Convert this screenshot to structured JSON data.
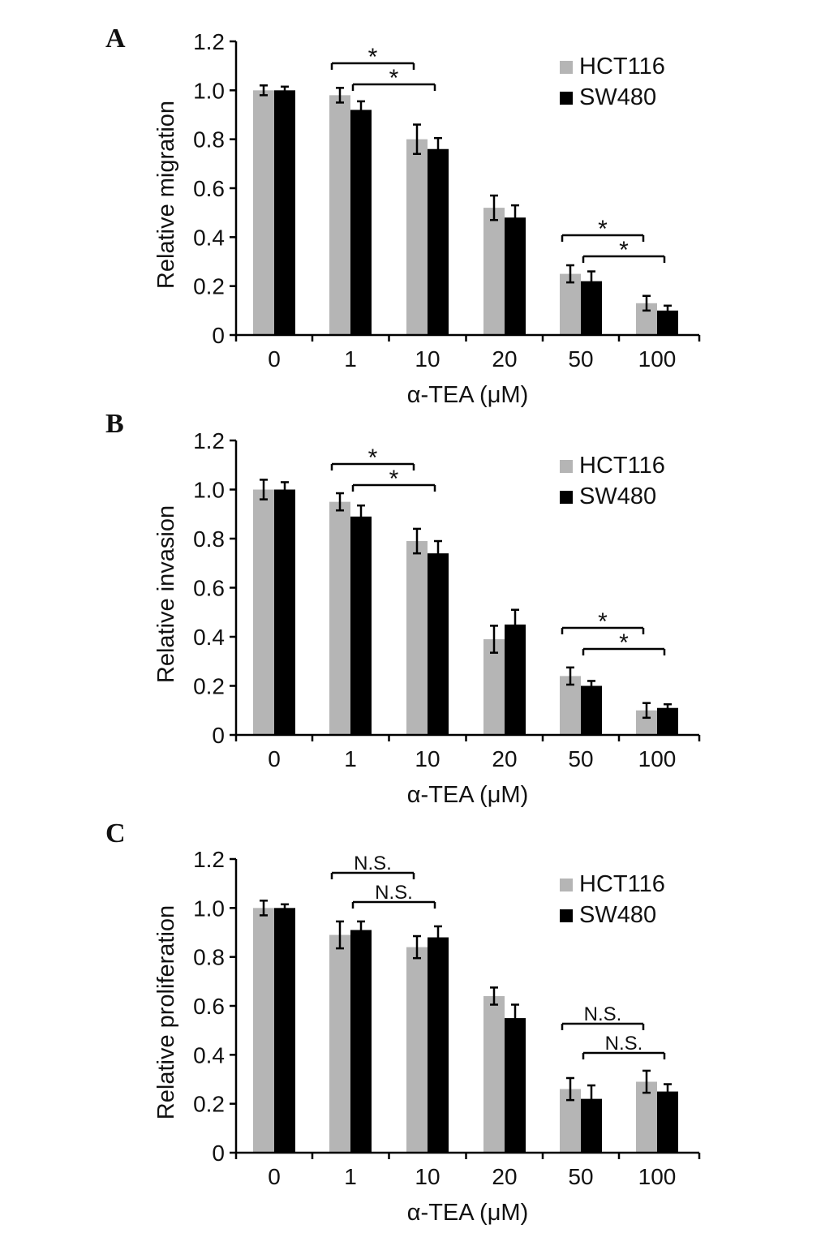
{
  "figure": {
    "panels": [
      "A",
      "B",
      "C"
    ]
  },
  "colors": {
    "HCT116": "#b5b5b5",
    "SW480": "#000000"
  },
  "chart_data": [
    {
      "type": "bar",
      "panel": "A",
      "categories": [
        "0",
        "1",
        "10",
        "20",
        "50",
        "100"
      ],
      "series": [
        {
          "name": "HCT116",
          "values": [
            1.0,
            0.98,
            0.8,
            0.52,
            0.25,
            0.13
          ],
          "errors": [
            0.02,
            0.03,
            0.06,
            0.05,
            0.035,
            0.03
          ]
        },
        {
          "name": "SW480",
          "values": [
            1.0,
            0.92,
            0.76,
            0.48,
            0.22,
            0.1
          ],
          "errors": [
            0.015,
            0.035,
            0.045,
            0.05,
            0.04,
            0.02
          ]
        }
      ],
      "title": "",
      "xlabel": "α-TEA (μM)",
      "ylabel": "Relative migration",
      "ylim": [
        0,
        1.2
      ],
      "yticks": [
        "0",
        "0.2",
        "0.4",
        "0.6",
        "0.8",
        "1.0",
        "1.2"
      ],
      "legend": "top-right",
      "grid": false,
      "annotations": [
        {
          "label": "*",
          "from": {
            "category": "1",
            "series": "HCT116"
          },
          "to": {
            "category": "10",
            "series": "HCT116"
          }
        },
        {
          "label": "*",
          "from": {
            "category": "1",
            "series": "SW480"
          },
          "to": {
            "category": "10",
            "series": "SW480"
          }
        },
        {
          "label": "*",
          "from": {
            "category": "50",
            "series": "HCT116"
          },
          "to": {
            "category": "100",
            "series": "HCT116"
          }
        },
        {
          "label": "*",
          "from": {
            "category": "50",
            "series": "SW480"
          },
          "to": {
            "category": "100",
            "series": "SW480"
          }
        }
      ]
    },
    {
      "type": "bar",
      "panel": "B",
      "categories": [
        "0",
        "1",
        "10",
        "20",
        "50",
        "100"
      ],
      "series": [
        {
          "name": "HCT116",
          "values": [
            1.0,
            0.95,
            0.79,
            0.39,
            0.24,
            0.1
          ],
          "errors": [
            0.04,
            0.035,
            0.05,
            0.055,
            0.035,
            0.03
          ]
        },
        {
          "name": "SW480",
          "values": [
            1.0,
            0.89,
            0.74,
            0.45,
            0.2,
            0.11
          ],
          "errors": [
            0.03,
            0.045,
            0.05,
            0.06,
            0.02,
            0.015
          ]
        }
      ],
      "title": "",
      "xlabel": "α-TEA (μM)",
      "ylabel": "Relative invasion",
      "ylim": [
        0,
        1.2
      ],
      "yticks": [
        "0",
        "0.2",
        "0.4",
        "0.6",
        "0.8",
        "1.0",
        "1.2"
      ],
      "legend": "top-right",
      "grid": false,
      "annotations": [
        {
          "label": "*",
          "from": {
            "category": "1",
            "series": "HCT116"
          },
          "to": {
            "category": "10",
            "series": "HCT116"
          }
        },
        {
          "label": "*",
          "from": {
            "category": "1",
            "series": "SW480"
          },
          "to": {
            "category": "10",
            "series": "SW480"
          }
        },
        {
          "label": "*",
          "from": {
            "category": "50",
            "series": "HCT116"
          },
          "to": {
            "category": "100",
            "series": "HCT116"
          }
        },
        {
          "label": "*",
          "from": {
            "category": "50",
            "series": "SW480"
          },
          "to": {
            "category": "100",
            "series": "SW480"
          }
        }
      ]
    },
    {
      "type": "bar",
      "panel": "C",
      "categories": [
        "0",
        "1",
        "10",
        "20",
        "50",
        "100"
      ],
      "series": [
        {
          "name": "HCT116",
          "values": [
            1.0,
            0.89,
            0.84,
            0.64,
            0.26,
            0.29
          ],
          "errors": [
            0.03,
            0.055,
            0.045,
            0.035,
            0.045,
            0.045
          ]
        },
        {
          "name": "SW480",
          "values": [
            1.0,
            0.91,
            0.88,
            0.55,
            0.22,
            0.25
          ],
          "errors": [
            0.015,
            0.035,
            0.045,
            0.055,
            0.055,
            0.03
          ]
        }
      ],
      "title": "",
      "xlabel": "α-TEA (μM)",
      "ylabel": "Relative proliferation",
      "ylim": [
        0,
        1.2
      ],
      "yticks": [
        "0",
        "0.2",
        "0.4",
        "0.6",
        "0.8",
        "1.0",
        "1.2"
      ],
      "legend": "top-right",
      "grid": false,
      "annotations": [
        {
          "label": "N.S.",
          "from": {
            "category": "1",
            "series": "HCT116"
          },
          "to": {
            "category": "10",
            "series": "HCT116"
          }
        },
        {
          "label": "N.S.",
          "from": {
            "category": "1",
            "series": "SW480"
          },
          "to": {
            "category": "10",
            "series": "SW480"
          }
        },
        {
          "label": "N.S.",
          "from": {
            "category": "50",
            "series": "HCT116"
          },
          "to": {
            "category": "100",
            "series": "HCT116"
          }
        },
        {
          "label": "N.S.",
          "from": {
            "category": "50",
            "series": "SW480"
          },
          "to": {
            "category": "100",
            "series": "SW480"
          }
        }
      ]
    }
  ]
}
